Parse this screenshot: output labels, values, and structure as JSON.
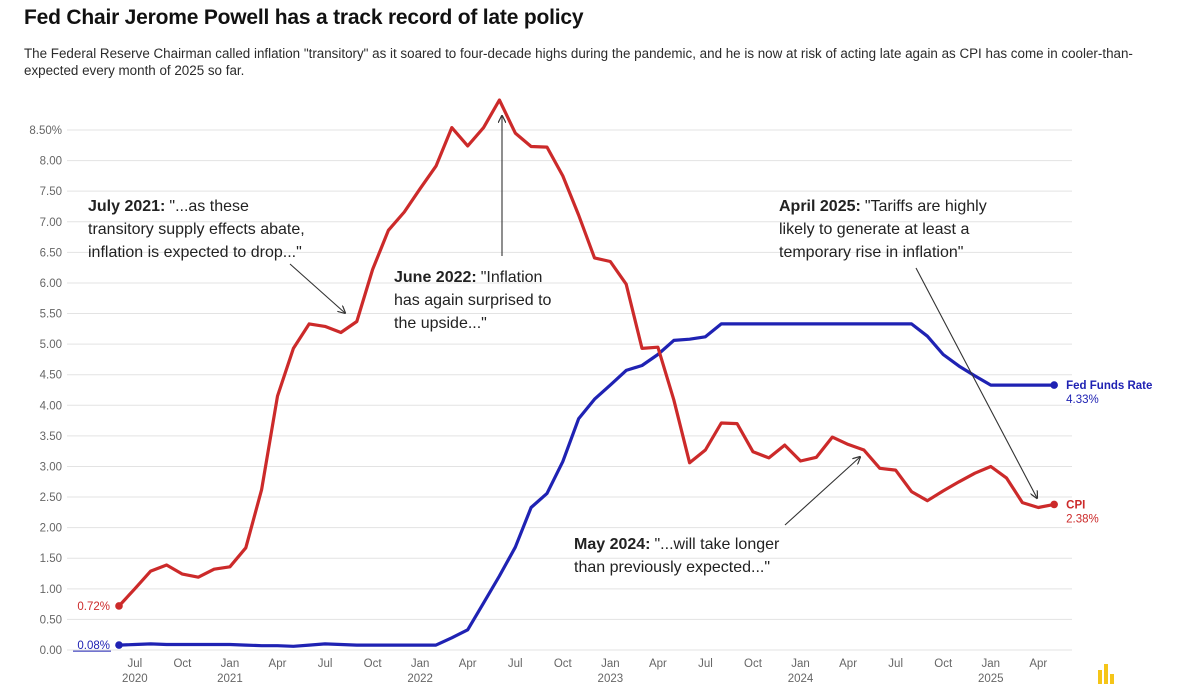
{
  "title": "Fed Chair Jerome Powell has a track record of late policy",
  "subtitle": "The Federal Reserve Chairman called inflation \"transitory\" as it soared to four-decade highs during the pandemic, and he is now at risk of acting late again as CPI has come in cooler-than-expected every month of 2025 so far.",
  "colors": {
    "cpi": "#cc2a2a",
    "fed": "#1f22b3",
    "grid": "#e3e3e3",
    "arrow": "#333333",
    "logo": "#f5c518"
  },
  "annotations": {
    "a1": {
      "bold": "July 2021:",
      "lines": [
        "\"...as these",
        "transitory supply effects abate,",
        "inflation is expected to drop...\""
      ]
    },
    "a2": {
      "bold": "June 2022:",
      "lines": [
        "\"Inflation",
        "has again surprised to",
        "the upside...\""
      ]
    },
    "a3": {
      "bold": "April 2025:",
      "lines": [
        "\"Tariffs are highly",
        "likely to generate at least a",
        "temporary rise in inflation\""
      ]
    },
    "a4": {
      "bold": "May 2024:",
      "lines": [
        "\"...will take longer",
        "than previously expected...\""
      ]
    }
  },
  "chart_data": {
    "type": "line",
    "ylim": [
      0,
      8.5
    ],
    "y_ticks": [
      "0.00",
      "0.50",
      "1.00",
      "1.50",
      "2.00",
      "2.50",
      "3.00",
      "3.50",
      "4.00",
      "4.50",
      "5.00",
      "5.50",
      "6.00",
      "6.50",
      "7.00",
      "7.50",
      "8.00",
      "8.50%"
    ],
    "x_ticks": [
      {
        "label": "Jul",
        "year": "2020",
        "i": 1
      },
      {
        "label": "Oct",
        "year": "",
        "i": 4
      },
      {
        "label": "Jan",
        "year": "2021",
        "i": 7
      },
      {
        "label": "Apr",
        "year": "",
        "i": 10
      },
      {
        "label": "Jul",
        "year": "",
        "i": 13
      },
      {
        "label": "Oct",
        "year": "",
        "i": 16
      },
      {
        "label": "Jan",
        "year": "2022",
        "i": 19
      },
      {
        "label": "Apr",
        "year": "",
        "i": 22
      },
      {
        "label": "Jul",
        "year": "",
        "i": 25
      },
      {
        "label": "Oct",
        "year": "",
        "i": 28
      },
      {
        "label": "Jan",
        "year": "2023",
        "i": 31
      },
      {
        "label": "Apr",
        "year": "",
        "i": 34
      },
      {
        "label": "Jul",
        "year": "",
        "i": 37
      },
      {
        "label": "Oct",
        "year": "",
        "i": 40
      },
      {
        "label": "Jan",
        "year": "2024",
        "i": 43
      },
      {
        "label": "Apr",
        "year": "",
        "i": 46
      },
      {
        "label": "Jul",
        "year": "",
        "i": 49
      },
      {
        "label": "Oct",
        "year": "",
        "i": 52
      },
      {
        "label": "Jan",
        "year": "2025",
        "i": 55
      },
      {
        "label": "Apr",
        "year": "",
        "i": 58
      }
    ],
    "series": [
      {
        "name": "CPI",
        "start_label": "0.72%",
        "end_label": "2.38%",
        "values": [
          0.72,
          1.0,
          1.29,
          1.39,
          1.24,
          1.19,
          1.32,
          1.36,
          1.67,
          2.62,
          4.15,
          4.93,
          5.33,
          5.29,
          5.19,
          5.37,
          6.22,
          6.86,
          7.16,
          7.54,
          7.91,
          8.54,
          8.24,
          8.54,
          8.99,
          8.45,
          8.23,
          8.22,
          7.75,
          7.11,
          6.41,
          6.35,
          5.98,
          4.93,
          4.95,
          4.09,
          3.06,
          3.27,
          3.71,
          3.7,
          3.24,
          3.14,
          3.35,
          3.09,
          3.15,
          3.48,
          3.36,
          3.27,
          2.97,
          2.94,
          2.59,
          2.44,
          2.6,
          2.75,
          2.89,
          3.0,
          2.81,
          2.41,
          2.33,
          2.38
        ],
        "end_value": 2.38
      },
      {
        "name": "Fed Funds Rate",
        "start_label": "0.08%",
        "end_label": "4.33%",
        "values": [
          0.08,
          0.09,
          0.1,
          0.09,
          0.09,
          0.09,
          0.09,
          0.09,
          0.08,
          0.07,
          0.07,
          0.06,
          0.08,
          0.1,
          0.09,
          0.08,
          0.08,
          0.08,
          0.08,
          0.08,
          0.08,
          0.2,
          0.33,
          0.77,
          1.21,
          1.68,
          2.33,
          2.56,
          3.08,
          3.78,
          4.1,
          4.33,
          4.57,
          4.65,
          4.83,
          5.06,
          5.08,
          5.12,
          5.33,
          5.33,
          5.33,
          5.33,
          5.33,
          5.33,
          5.33,
          5.33,
          5.33,
          5.33,
          5.33,
          5.33,
          5.33,
          5.13,
          4.83,
          4.64,
          4.48,
          4.33,
          4.33,
          4.33,
          4.33,
          4.33
        ],
        "end_value": 4.33
      }
    ]
  }
}
